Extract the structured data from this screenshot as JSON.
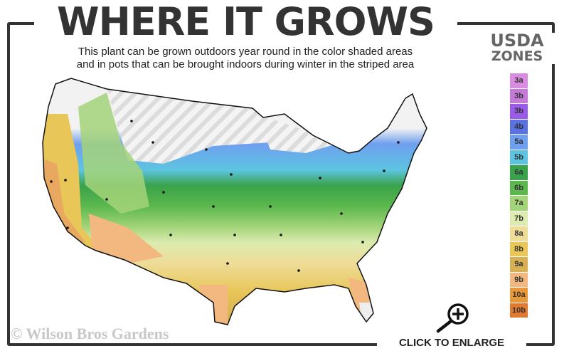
{
  "title": "WHERE IT GROWS",
  "subtitle_line1": "This plant can be grown outdoors year round in the color shaded areas",
  "subtitle_line2": "and in pots that can be brought indoors during winter in the striped area",
  "legend": {
    "title_line1": "USDA",
    "title_line2": "ZONES",
    "zones": [
      {
        "label": "3a",
        "color": "#d98ce0"
      },
      {
        "label": "3b",
        "color": "#c47ad6"
      },
      {
        "label": "3b",
        "color": "#9a5be8"
      },
      {
        "label": "4b",
        "color": "#5a72e0"
      },
      {
        "label": "5a",
        "color": "#6fa0f0"
      },
      {
        "label": "5b",
        "color": "#5cc4e0"
      },
      {
        "label": "6a",
        "color": "#3aa24a"
      },
      {
        "label": "6b",
        "color": "#5cb84e"
      },
      {
        "label": "7a",
        "color": "#a4d47a"
      },
      {
        "label": "7b",
        "color": "#dcecb0"
      },
      {
        "label": "8a",
        "color": "#eedc98"
      },
      {
        "label": "8b",
        "color": "#e8c658"
      },
      {
        "label": "9a",
        "color": "#d8b054"
      },
      {
        "label": "9b",
        "color": "#f2b880"
      },
      {
        "label": "10a",
        "color": "#e89838"
      },
      {
        "label": "10b",
        "color": "#e07a30"
      }
    ]
  },
  "copyright": "© Wilson Bros Gardens",
  "enlarge_label": "CLICK TO ENLARGE",
  "icons": {
    "enlarge": "magnifier-plus-icon"
  }
}
